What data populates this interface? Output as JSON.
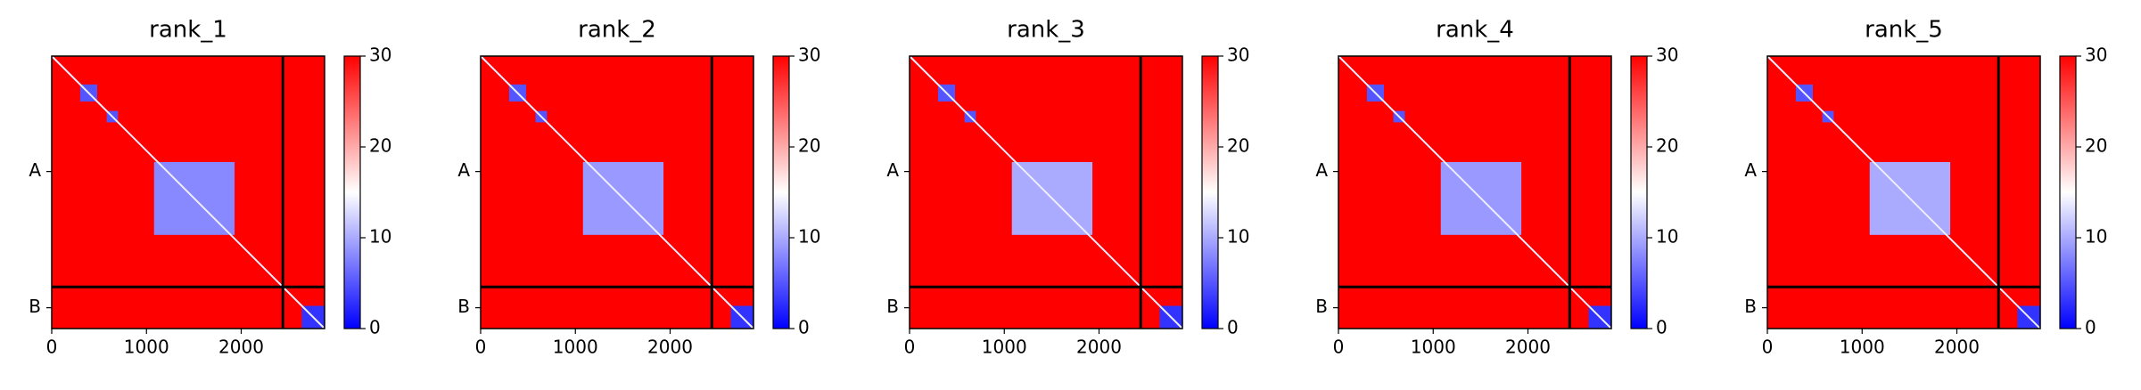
{
  "chart_data": [
    {
      "type": "heatmap",
      "title": "rank_1",
      "xlim": [
        0,
        2880
      ],
      "ylim": [
        0,
        2880
      ],
      "xticks": [
        0,
        1000,
        2000
      ],
      "yticks": [
        {
          "value": 1220,
          "label": "A"
        },
        {
          "value": 2660,
          "label": "B"
        }
      ],
      "zlim": [
        0,
        30
      ],
      "zticks": [
        0,
        10,
        20,
        30
      ],
      "colormap": "bwr",
      "background": 30,
      "diagonal": 14,
      "boundaries": [
        2440
      ],
      "blocks": [
        {
          "x": [
            300,
            480
          ],
          "y": [
            300,
            480
          ],
          "value": 5
        },
        {
          "x": [
            580,
            700
          ],
          "y": [
            580,
            700
          ],
          "value": 5
        },
        {
          "x": [
            1080,
            1930
          ],
          "y": [
            1120,
            1890
          ],
          "value": 8
        },
        {
          "x": [
            2640,
            2880
          ],
          "y": [
            2640,
            2880
          ],
          "value": 3
        }
      ]
    },
    {
      "type": "heatmap",
      "title": "rank_2",
      "xlim": [
        0,
        2880
      ],
      "ylim": [
        0,
        2880
      ],
      "xticks": [
        0,
        1000,
        2000
      ],
      "yticks": [
        {
          "value": 1220,
          "label": "A"
        },
        {
          "value": 2660,
          "label": "B"
        }
      ],
      "zlim": [
        0,
        30
      ],
      "zticks": [
        0,
        10,
        20,
        30
      ],
      "colormap": "bwr",
      "background": 30,
      "diagonal": 14,
      "boundaries": [
        2440
      ],
      "blocks": [
        {
          "x": [
            300,
            480
          ],
          "y": [
            300,
            480
          ],
          "value": 5
        },
        {
          "x": [
            580,
            700
          ],
          "y": [
            580,
            700
          ],
          "value": 5
        },
        {
          "x": [
            1080,
            1930
          ],
          "y": [
            1120,
            1890
          ],
          "value": 9
        },
        {
          "x": [
            2640,
            2880
          ],
          "y": [
            2640,
            2880
          ],
          "value": 3
        }
      ]
    },
    {
      "type": "heatmap",
      "title": "rank_3",
      "xlim": [
        0,
        2880
      ],
      "ylim": [
        0,
        2880
      ],
      "xticks": [
        0,
        1000,
        2000
      ],
      "yticks": [
        {
          "value": 1220,
          "label": "A"
        },
        {
          "value": 2660,
          "label": "B"
        }
      ],
      "zlim": [
        0,
        30
      ],
      "zticks": [
        0,
        10,
        20,
        30
      ],
      "colormap": "bwr",
      "background": 30,
      "diagonal": 14,
      "boundaries": [
        2440
      ],
      "blocks": [
        {
          "x": [
            300,
            480
          ],
          "y": [
            300,
            480
          ],
          "value": 5
        },
        {
          "x": [
            580,
            700
          ],
          "y": [
            580,
            700
          ],
          "value": 5
        },
        {
          "x": [
            1080,
            1930
          ],
          "y": [
            1120,
            1890
          ],
          "value": 10
        },
        {
          "x": [
            2640,
            2880
          ],
          "y": [
            2640,
            2880
          ],
          "value": 3
        }
      ]
    },
    {
      "type": "heatmap",
      "title": "rank_4",
      "xlim": [
        0,
        2880
      ],
      "ylim": [
        0,
        2880
      ],
      "xticks": [
        0,
        1000,
        2000
      ],
      "yticks": [
        {
          "value": 1220,
          "label": "A"
        },
        {
          "value": 2660,
          "label": "B"
        }
      ],
      "zlim": [
        0,
        30
      ],
      "zticks": [
        0,
        10,
        20,
        30
      ],
      "colormap": "bwr",
      "background": 30,
      "diagonal": 14,
      "boundaries": [
        2440
      ],
      "blocks": [
        {
          "x": [
            300,
            480
          ],
          "y": [
            300,
            480
          ],
          "value": 5
        },
        {
          "x": [
            580,
            700
          ],
          "y": [
            580,
            700
          ],
          "value": 5
        },
        {
          "x": [
            1080,
            1930
          ],
          "y": [
            1120,
            1890
          ],
          "value": 9
        },
        {
          "x": [
            2640,
            2880
          ],
          "y": [
            2640,
            2880
          ],
          "value": 3
        }
      ]
    },
    {
      "type": "heatmap",
      "title": "rank_5",
      "xlim": [
        0,
        2880
      ],
      "ylim": [
        0,
        2880
      ],
      "xticks": [
        0,
        1000,
        2000
      ],
      "yticks": [
        {
          "value": 1220,
          "label": "A"
        },
        {
          "value": 2660,
          "label": "B"
        }
      ],
      "zlim": [
        0,
        30
      ],
      "zticks": [
        0,
        10,
        20,
        30
      ],
      "colormap": "bwr",
      "background": 30,
      "diagonal": 14,
      "boundaries": [
        2440
      ],
      "blocks": [
        {
          "x": [
            300,
            480
          ],
          "y": [
            300,
            480
          ],
          "value": 5
        },
        {
          "x": [
            580,
            700
          ],
          "y": [
            580,
            700
          ],
          "value": 5
        },
        {
          "x": [
            1080,
            1930
          ],
          "y": [
            1120,
            1890
          ],
          "value": 10
        },
        {
          "x": [
            2640,
            2880
          ],
          "y": [
            2640,
            2880
          ],
          "value": 3
        }
      ]
    }
  ]
}
